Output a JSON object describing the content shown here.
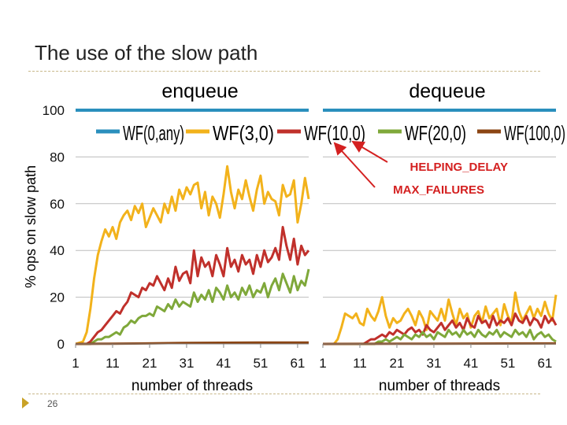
{
  "slide": {
    "title": "The use of the slow path",
    "page_number": "26"
  },
  "colors": {
    "accent": "#c9a227",
    "rule": "#c8b88a"
  },
  "legend": [
    "WF(0,any)",
    "WF(3,0)",
    "WF(10,0)",
    "WF(20,0)",
    "WF(100,0)"
  ],
  "annotations": {
    "helping": "HELPING_DELAY",
    "failures": "MAX_FAILURES"
  },
  "chart_data": [
    {
      "type": "line",
      "title": "enqueue",
      "xlabel": "number of threads",
      "ylabel": "% ops on slow path",
      "xlim": [
        1,
        64
      ],
      "ylim": [
        0,
        100
      ],
      "xticks": [
        1,
        11,
        21,
        31,
        41,
        51,
        61
      ],
      "yticks": [
        0,
        20,
        40,
        60,
        80,
        100
      ],
      "legend_position": "top",
      "series": [
        {
          "name": "WF(0,any)",
          "color": "#2a8fbd",
          "x": [
            1,
            64
          ],
          "y": [
            100,
            100
          ]
        },
        {
          "name": "WF(3,0)",
          "color": "#f2b21b",
          "x": [
            1,
            3,
            4,
            5,
            6,
            7,
            8,
            9,
            10,
            11,
            12,
            13,
            14,
            15,
            16,
            17,
            18,
            19,
            20,
            21,
            22,
            23,
            24,
            25,
            26,
            27,
            28,
            29,
            30,
            31,
            32,
            33,
            34,
            35,
            36,
            37,
            38,
            39,
            40,
            41,
            42,
            43,
            44,
            45,
            46,
            47,
            48,
            49,
            50,
            51,
            52,
            53,
            54,
            55,
            56,
            57,
            58,
            59,
            60,
            61,
            62,
            63,
            64
          ],
          "y": [
            0,
            1,
            5,
            15,
            28,
            38,
            44,
            49,
            46,
            50,
            45,
            52,
            55,
            57,
            53,
            59,
            56,
            60,
            50,
            54,
            58,
            55,
            52,
            60,
            56,
            63,
            57,
            66,
            62,
            67,
            64,
            68,
            69,
            58,
            65,
            55,
            63,
            60,
            54,
            64,
            76,
            65,
            58,
            66,
            62,
            70,
            63,
            57,
            66,
            72,
            60,
            65,
            62,
            61,
            55,
            68,
            63,
            64,
            70,
            52,
            60,
            71,
            62
          ]
        },
        {
          "name": "WF(10,0)",
          "color": "#c0302b",
          "x": [
            1,
            4,
            5,
            6,
            7,
            8,
            9,
            10,
            11,
            12,
            13,
            14,
            15,
            16,
            17,
            18,
            19,
            20,
            21,
            22,
            23,
            24,
            25,
            26,
            27,
            28,
            29,
            30,
            31,
            32,
            33,
            34,
            35,
            36,
            37,
            38,
            39,
            40,
            41,
            42,
            43,
            44,
            45,
            46,
            47,
            48,
            49,
            50,
            51,
            52,
            53,
            54,
            55,
            56,
            57,
            58,
            59,
            60,
            61,
            62,
            63,
            64
          ],
          "y": [
            0,
            0,
            1,
            3,
            5,
            6,
            8,
            10,
            12,
            14,
            13,
            16,
            18,
            22,
            21,
            20,
            24,
            23,
            26,
            25,
            29,
            26,
            23,
            28,
            24,
            33,
            27,
            30,
            31,
            26,
            40,
            29,
            37,
            33,
            35,
            29,
            38,
            34,
            29,
            41,
            33,
            36,
            31,
            38,
            34,
            36,
            30,
            38,
            33,
            40,
            35,
            37,
            41,
            36,
            50,
            42,
            36,
            45,
            34,
            42,
            38,
            40
          ]
        },
        {
          "name": "WF(20,0)",
          "color": "#7fa83a",
          "x": [
            1,
            4,
            5,
            6,
            7,
            8,
            9,
            10,
            11,
            12,
            13,
            14,
            15,
            16,
            17,
            18,
            19,
            20,
            21,
            22,
            23,
            24,
            25,
            26,
            27,
            28,
            29,
            30,
            31,
            32,
            33,
            34,
            35,
            36,
            37,
            38,
            39,
            40,
            41,
            42,
            43,
            44,
            45,
            46,
            47,
            48,
            49,
            50,
            51,
            52,
            53,
            54,
            55,
            56,
            57,
            58,
            59,
            60,
            61,
            62,
            63,
            64
          ],
          "y": [
            0,
            0,
            0,
            1,
            2,
            2,
            3,
            3,
            4,
            5,
            4,
            7,
            8,
            10,
            9,
            11,
            12,
            12,
            13,
            12,
            16,
            15,
            14,
            17,
            15,
            19,
            16,
            18,
            17,
            16,
            22,
            18,
            21,
            19,
            23,
            18,
            24,
            22,
            19,
            25,
            20,
            22,
            19,
            24,
            21,
            25,
            20,
            23,
            22,
            26,
            20,
            25,
            28,
            23,
            30,
            26,
            22,
            29,
            23,
            27,
            25,
            32
          ]
        },
        {
          "name": "WF(100,0)",
          "color": "#8b4513",
          "x": [
            1,
            10,
            20,
            30,
            40,
            50,
            64
          ],
          "y": [
            0,
            0.1,
            0.2,
            0.4,
            0.5,
            0.6,
            0.6
          ]
        }
      ]
    },
    {
      "type": "line",
      "title": "dequeue",
      "xlabel": "number of threads",
      "ylabel": "",
      "xlim": [
        1,
        64
      ],
      "ylim": [
        0,
        100
      ],
      "xticks": [
        1,
        11,
        21,
        31,
        41,
        51,
        61
      ],
      "yticks": [
        0,
        20,
        40,
        60,
        80,
        100
      ],
      "series": [
        {
          "name": "WF(0,any)",
          "color": "#2a8fbd",
          "x": [
            1,
            64
          ],
          "y": [
            100,
            100
          ]
        },
        {
          "name": "WF(3,0)",
          "color": "#f2b21b",
          "x": [
            1,
            4,
            5,
            6,
            7,
            8,
            9,
            10,
            11,
            12,
            13,
            14,
            15,
            16,
            17,
            18,
            19,
            20,
            21,
            22,
            23,
            24,
            25,
            26,
            27,
            28,
            29,
            30,
            31,
            32,
            33,
            34,
            35,
            36,
            37,
            38,
            39,
            40,
            41,
            42,
            43,
            44,
            45,
            46,
            47,
            48,
            49,
            50,
            51,
            52,
            53,
            54,
            55,
            56,
            57,
            58,
            59,
            60,
            61,
            62,
            63,
            64
          ],
          "y": [
            0,
            0,
            2,
            7,
            13,
            12,
            11,
            13,
            9,
            8,
            15,
            12,
            10,
            14,
            20,
            12,
            7,
            11,
            9,
            10,
            13,
            15,
            12,
            8,
            14,
            11,
            6,
            14,
            12,
            10,
            15,
            10,
            19,
            13,
            8,
            15,
            11,
            13,
            7,
            12,
            14,
            9,
            16,
            11,
            13,
            15,
            8,
            17,
            12,
            9,
            22,
            14,
            10,
            13,
            16,
            11,
            15,
            12,
            18,
            13,
            10,
            21
          ]
        },
        {
          "name": "WF(10,0)",
          "color": "#c0302b",
          "x": [
            1,
            12,
            13,
            14,
            15,
            16,
            17,
            18,
            19,
            20,
            21,
            22,
            23,
            24,
            25,
            26,
            27,
            28,
            29,
            30,
            31,
            32,
            33,
            34,
            35,
            36,
            37,
            38,
            39,
            40,
            41,
            42,
            43,
            44,
            45,
            46,
            47,
            48,
            49,
            50,
            51,
            52,
            53,
            54,
            55,
            56,
            57,
            58,
            59,
            60,
            61,
            62,
            63,
            64
          ],
          "y": [
            0,
            0,
            1,
            2,
            2,
            3,
            4,
            3,
            5,
            4,
            6,
            5,
            4,
            6,
            7,
            5,
            6,
            4,
            8,
            6,
            5,
            7,
            9,
            6,
            8,
            10,
            7,
            9,
            6,
            11,
            8,
            7,
            12,
            9,
            10,
            7,
            12,
            8,
            10,
            9,
            11,
            8,
            13,
            10,
            9,
            12,
            8,
            11,
            10,
            7,
            12,
            9,
            11,
            8
          ]
        },
        {
          "name": "WF(20,0)",
          "color": "#7fa83a",
          "x": [
            1,
            14,
            15,
            16,
            17,
            18,
            19,
            20,
            21,
            22,
            23,
            24,
            25,
            26,
            27,
            28,
            29,
            30,
            31,
            32,
            33,
            34,
            35,
            36,
            37,
            38,
            39,
            40,
            41,
            42,
            43,
            44,
            45,
            46,
            47,
            48,
            49,
            50,
            51,
            52,
            53,
            54,
            55,
            56,
            57,
            58,
            59,
            60,
            61,
            62,
            63,
            64
          ],
          "y": [
            0,
            0,
            0,
            1,
            1,
            2,
            1,
            2,
            3,
            2,
            4,
            3,
            2,
            4,
            3,
            5,
            3,
            4,
            2,
            5,
            4,
            3,
            6,
            4,
            5,
            3,
            6,
            4,
            5,
            3,
            6,
            4,
            3,
            5,
            4,
            6,
            3,
            5,
            4,
            3,
            6,
            4,
            5,
            3,
            6,
            2,
            4,
            5,
            3,
            4,
            2,
            1
          ]
        },
        {
          "name": "WF(100,0)",
          "color": "#8b4513",
          "x": [
            1,
            30,
            64
          ],
          "y": [
            0,
            0.1,
            0.2
          ]
        }
      ]
    }
  ]
}
